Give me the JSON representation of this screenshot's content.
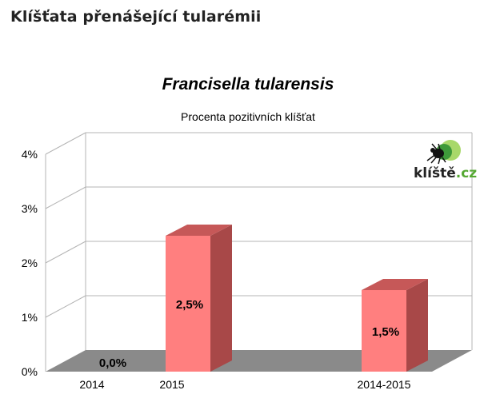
{
  "page": {
    "heading": "Klíšťata přenášející tularémii"
  },
  "logo": {
    "text_main": "klíště",
    "text_suffix": ".cz",
    "icon": "tick-icon",
    "colors": {
      "main": "#222222",
      "suffix": "#55a832",
      "circle_light": "#a8d86a",
      "circle_dark": "#3e9a3a"
    }
  },
  "chart_data": {
    "type": "bar",
    "title": "Francisella tularensis",
    "subtitle": "Procenta pozitivních klíšťat",
    "categories": [
      "2014",
      "2015",
      "2014-2015"
    ],
    "values": [
      0.0,
      2.5,
      1.5
    ],
    "value_labels": [
      "0,0%",
      "2,5%",
      "1,5%"
    ],
    "y_ticks": [
      "0%",
      "1%",
      "2%",
      "3%",
      "4%"
    ],
    "ylim": [
      0,
      4
    ],
    "grid": true,
    "three_d": true,
    "colors": {
      "bar_front": "#ff7f7f",
      "bar_side": "#a84848",
      "bar_top": "#c65858",
      "floor": "#8a8a8a",
      "gridline": "#b4b4b4"
    }
  }
}
